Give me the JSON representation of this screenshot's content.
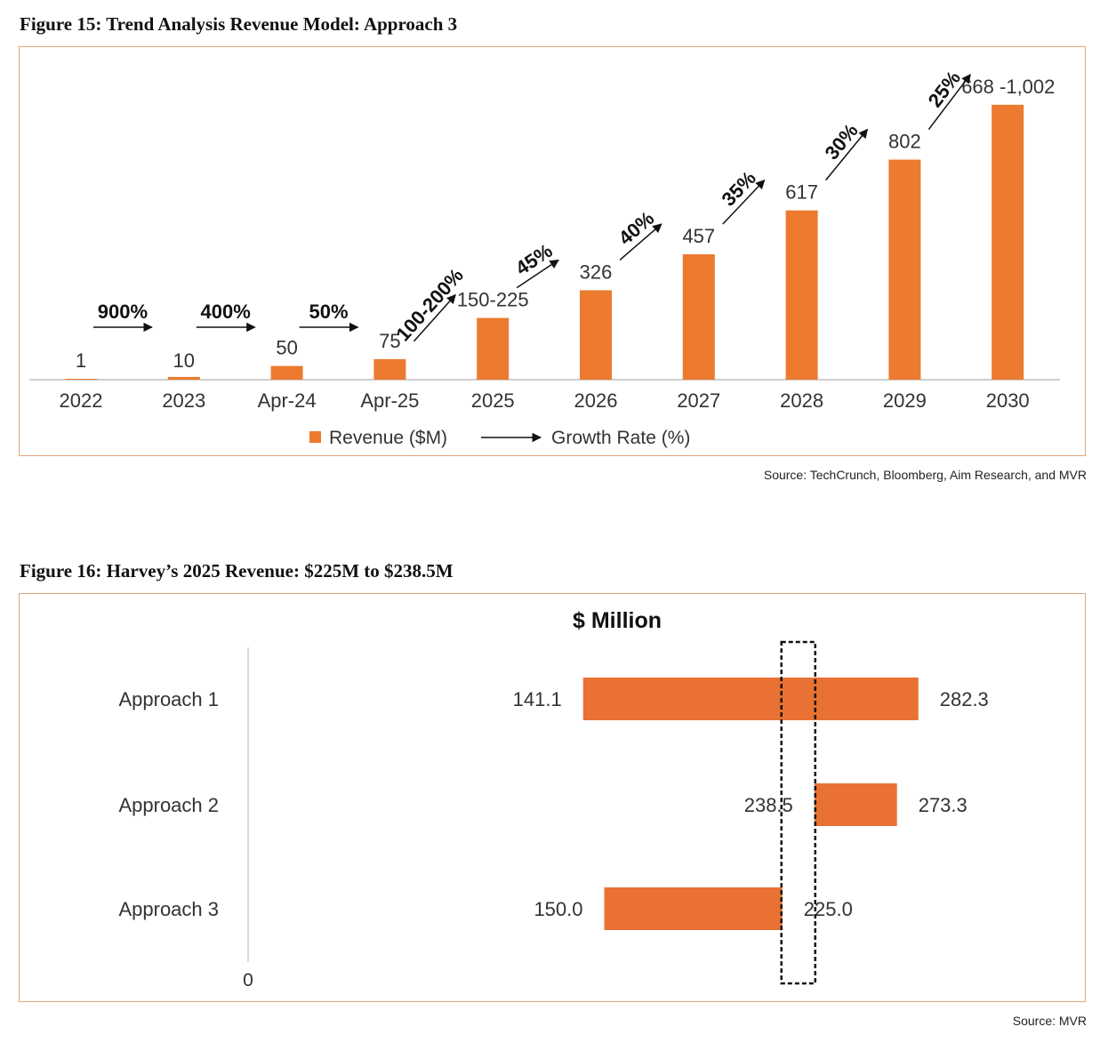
{
  "figure15": {
    "title": "Figure 15: Trend Analysis Revenue Model: Approach 3",
    "source": "Source: TechCrunch, Bloomberg, Aim Research, and MVR",
    "chart_data": {
      "type": "bar",
      "categories": [
        "2022",
        "2023",
        "Apr-24",
        "Apr-25",
        "2025",
        "2026",
        "2027",
        "2028",
        "2029",
        "2030"
      ],
      "values": [
        1,
        10,
        50,
        75,
        225,
        326,
        457,
        617,
        802,
        1002
      ],
      "value_labels": [
        "1",
        "10",
        "50",
        "75",
        "150-225",
        "326",
        "457",
        "617",
        "802",
        "668 -1,002"
      ],
      "growth_rates": [
        "900%",
        "400%",
        "50%",
        "100-200%",
        "45%",
        "40%",
        "35%",
        "30%",
        "25%"
      ],
      "legend": [
        "Revenue ($M)",
        "Growth Rate (%)"
      ],
      "legend_position": "bottom",
      "bar_color": "#ec7a2f",
      "ylim": [
        0,
        1050
      ],
      "grid": false
    }
  },
  "figure16": {
    "title": "Figure 16: Harvey’s 2025 Revenue: $225M to $238.5M",
    "source": "Source: MVR",
    "chart_data": {
      "type": "bar",
      "orientation": "horizontal",
      "title": "$ Million",
      "categories": [
        "Approach 1",
        "Approach 2",
        "Approach 3"
      ],
      "ranges": [
        [
          141.1,
          282.3
        ],
        [
          238.5,
          273.3
        ],
        [
          150.0,
          225.0
        ]
      ],
      "low_labels": [
        "141.1",
        "238.5",
        "150.0"
      ],
      "high_labels": [
        "282.3",
        "273.3",
        "225.0"
      ],
      "axis_zero_label": "0",
      "highlight_range": [
        225.0,
        238.5
      ],
      "bar_color": "#e97133",
      "xlim": [
        0,
        390
      ]
    }
  }
}
